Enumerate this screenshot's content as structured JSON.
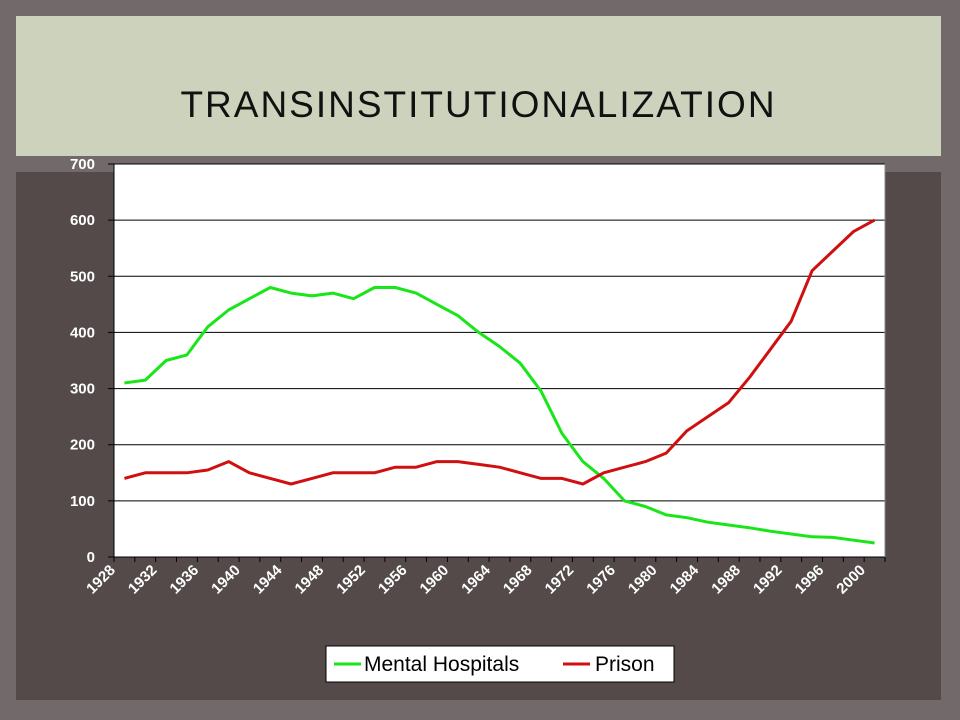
{
  "slide": {
    "title": "TRANSINSTITUTIONALIZATION"
  },
  "colors": {
    "background": "#726a6a",
    "title_band": "#cdd2bc",
    "content_panel": "#544a4a",
    "plot_background": "#ffffff",
    "mental_hospitals": "#19e619",
    "prison": "#d01010"
  },
  "chart_data": {
    "type": "line",
    "title": "",
    "xlabel": "",
    "ylabel": "",
    "ylim": [
      0,
      700
    ],
    "yticks": [
      0,
      100,
      200,
      300,
      400,
      500,
      600,
      700
    ],
    "xlim": [
      1928,
      2002
    ],
    "xticks": [
      1928,
      1932,
      1936,
      1940,
      1944,
      1948,
      1952,
      1956,
      1960,
      1964,
      1968,
      1972,
      1976,
      1980,
      1984,
      1988,
      1992,
      1996,
      2000
    ],
    "grid": "horizontal",
    "legend": "bottom",
    "series": [
      {
        "name": "Mental Hospitals",
        "color": "#19e619",
        "x": [
          1929,
          1931,
          1933,
          1935,
          1937,
          1939,
          1941,
          1943,
          1945,
          1947,
          1949,
          1951,
          1953,
          1955,
          1957,
          1959,
          1961,
          1963,
          1965,
          1967,
          1969,
          1971,
          1973,
          1975,
          1977,
          1979,
          1981,
          1983,
          1985,
          1987,
          1989,
          1991,
          1993,
          1995,
          1997,
          1999,
          2001
        ],
        "values": [
          310,
          315,
          350,
          360,
          410,
          440,
          460,
          480,
          470,
          465,
          470,
          460,
          480,
          480,
          470,
          450,
          430,
          400,
          375,
          345,
          295,
          220,
          170,
          140,
          100,
          90,
          75,
          70,
          62,
          57,
          52,
          46,
          41,
          36,
          35,
          30,
          25
        ]
      },
      {
        "name": "Prison",
        "color": "#d01010",
        "x": [
          1929,
          1931,
          1933,
          1935,
          1937,
          1939,
          1941,
          1943,
          1945,
          1947,
          1949,
          1951,
          1953,
          1955,
          1957,
          1959,
          1961,
          1963,
          1965,
          1967,
          1969,
          1971,
          1973,
          1975,
          1977,
          1979,
          1981,
          1983,
          1985,
          1987,
          1989,
          1991,
          1993,
          1995,
          1997,
          1999,
          2001
        ],
        "values": [
          140,
          150,
          150,
          150,
          155,
          170,
          150,
          140,
          130,
          140,
          150,
          150,
          150,
          160,
          160,
          170,
          170,
          165,
          160,
          150,
          140,
          140,
          130,
          150,
          160,
          170,
          185,
          225,
          250,
          275,
          320,
          370,
          420,
          510,
          545,
          580,
          600
        ]
      }
    ]
  }
}
